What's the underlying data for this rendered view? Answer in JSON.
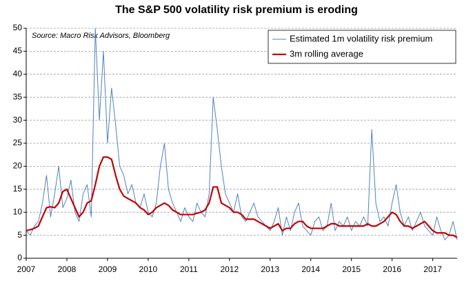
{
  "chart_data": {
    "type": "line",
    "title": "The S&P 500 volatility risk premium is eroding",
    "annotation": "Source: Macro Risk Advisors, Bloomberg",
    "x": [
      2007.0,
      2007.1,
      2007.2,
      2007.3,
      2007.4,
      2007.5,
      2007.6,
      2007.7,
      2007.8,
      2007.9,
      2008.0,
      2008.1,
      2008.2,
      2008.3,
      2008.4,
      2008.5,
      2008.6,
      2008.7,
      2008.8,
      2008.9,
      2009.0,
      2009.1,
      2009.2,
      2009.3,
      2009.4,
      2009.5,
      2009.6,
      2009.7,
      2009.8,
      2009.9,
      2010.0,
      2010.1,
      2010.2,
      2010.3,
      2010.4,
      2010.5,
      2010.6,
      2010.7,
      2010.8,
      2010.9,
      2011.0,
      2011.1,
      2011.2,
      2011.3,
      2011.4,
      2011.5,
      2011.6,
      2011.7,
      2011.8,
      2011.9,
      2012.0,
      2012.1,
      2012.2,
      2012.3,
      2012.4,
      2012.5,
      2012.6,
      2012.7,
      2012.8,
      2012.9,
      2013.0,
      2013.1,
      2013.2,
      2013.3,
      2013.4,
      2013.5,
      2013.6,
      2013.7,
      2013.8,
      2013.9,
      2014.0,
      2014.1,
      2014.2,
      2014.3,
      2014.4,
      2014.5,
      2014.6,
      2014.7,
      2014.8,
      2014.9,
      2015.0,
      2015.1,
      2015.2,
      2015.3,
      2015.4,
      2015.5,
      2015.6,
      2015.7,
      2015.8,
      2015.9,
      2016.0,
      2016.1,
      2016.2,
      2016.3,
      2016.4,
      2016.5,
      2016.6,
      2016.7,
      2016.8,
      2016.9,
      2017.0,
      2017.1,
      2017.2,
      2017.3,
      2017.4,
      2017.5,
      2017.6
    ],
    "series": [
      {
        "name": "Estimated 1m volatility risk premium",
        "color": "#4f81bd",
        "width": 1,
        "values": [
          6,
          5,
          7,
          8,
          12,
          18,
          9,
          14,
          20,
          11,
          13,
          17,
          10,
          8,
          14,
          16,
          9,
          50,
          30,
          45,
          25,
          37,
          29,
          20,
          18,
          14,
          16,
          12,
          11,
          14,
          10,
          9,
          12,
          20,
          25,
          15,
          12,
          10,
          8,
          11,
          9,
          8,
          12,
          10,
          9,
          14,
          35,
          28,
          20,
          14,
          12,
          10,
          14,
          9,
          8,
          10,
          12,
          9,
          8,
          7,
          6,
          8,
          11,
          5,
          9,
          6,
          10,
          12,
          7,
          6,
          5,
          8,
          9,
          6,
          7,
          12,
          6,
          8,
          7,
          9,
          6,
          8,
          7,
          9,
          7,
          28,
          12,
          8,
          9,
          7,
          12,
          16,
          10,
          7,
          9,
          6,
          8,
          10,
          7,
          6,
          5,
          9,
          6,
          4,
          5,
          8,
          4
        ]
      },
      {
        "name": "3m rolling average",
        "color": "#c00000",
        "width": 2.2,
        "values": [
          6,
          6.2,
          6.5,
          7,
          9,
          11,
          11.2,
          11,
          12,
          14.5,
          15,
          13,
          11,
          9,
          10,
          12,
          12.5,
          16,
          20,
          22,
          22,
          21.5,
          18,
          15,
          13.5,
          13,
          12.5,
          12,
          11,
          10.5,
          9.5,
          10,
          11,
          11.5,
          12,
          11.5,
          10.5,
          10,
          9.5,
          9.5,
          9.5,
          9.5,
          9.8,
          10,
          10.5,
          12,
          15.5,
          15.5,
          12,
          11.5,
          11,
          10,
          10,
          9.5,
          8.5,
          8.5,
          8.5,
          8,
          7.5,
          7,
          6.5,
          7,
          7.5,
          6,
          6.5,
          6.5,
          7.5,
          8,
          8,
          7,
          6.5,
          6.5,
          6.5,
          6.5,
          7,
          7.5,
          7.5,
          7,
          7,
          7,
          7,
          7,
          7,
          7,
          7.5,
          7,
          7,
          7.5,
          8,
          9,
          10,
          9.5,
          8,
          7,
          7,
          6.5,
          7,
          7.5,
          8,
          7,
          6,
          5.5,
          5.5,
          5.5,
          5,
          5,
          4.5
        ]
      }
    ],
    "xlim": [
      2007,
      2017.6
    ],
    "xticks": [
      2007,
      2008,
      2009,
      2010,
      2011,
      2012,
      2013,
      2014,
      2015,
      2016,
      2017
    ],
    "ylim": [
      0,
      50
    ],
    "yticks": [
      0,
      5,
      10,
      15,
      20,
      25,
      30,
      35,
      40,
      45,
      50
    ],
    "grid": true,
    "legend": "top-right"
  }
}
